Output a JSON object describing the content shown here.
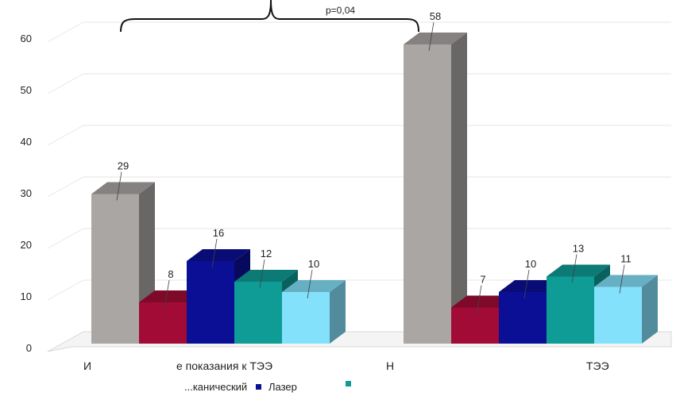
{
  "chart_data": {
    "type": "bar",
    "categories": [
      "И... е показания к ТЭЭ",
      "Н... ТЭЭ"
    ],
    "series": [
      {
        "name": "",
        "values": [
          29,
          58
        ],
        "color": "#aaa6a4"
      },
      {
        "name": "...канический",
        "values": [
          8,
          7
        ],
        "color": "#a10b35"
      },
      {
        "name": "Лазер",
        "values": [
          16,
          10
        ],
        "color": "#0b0f95"
      },
      {
        "name": "",
        "values": [
          12,
          13
        ],
        "color": "#0f9c96"
      },
      {
        "name": "",
        "values": [
          10,
          11
        ],
        "color": "#84e1fb"
      }
    ],
    "ylim": [
      0,
      60
    ],
    "yticks": [
      0,
      10,
      20,
      30,
      40,
      50,
      60
    ],
    "grid": true,
    "annotation": "p=0,04",
    "legend_position": "bottom"
  }
}
